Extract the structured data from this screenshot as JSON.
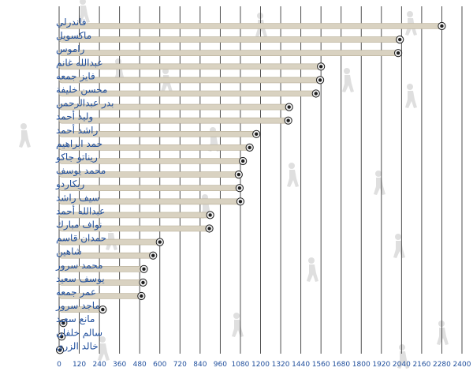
{
  "chart_data": {
    "type": "bar",
    "title": "",
    "xlabel": "",
    "ylabel": "",
    "xlim": [
      0,
      2400
    ],
    "grid": true,
    "x_ticks": [
      0,
      120,
      240,
      360,
      480,
      600,
      720,
      840,
      960,
      1080,
      1200,
      1320,
      1440,
      1560,
      1680,
      1800,
      1920,
      2040,
      2160,
      2280,
      2400
    ],
    "categories": [
      "فاندرلي",
      "ماكسويل",
      "راموس",
      "عبدالله غانم",
      "فايز جمعه",
      "محسن خليفة",
      "بدر عبدالرحمن",
      "وليد أحمد",
      "راشد أحمد",
      "حمد ابراهيم",
      "ريناتو جاكو",
      "محمد يوسف",
      "ريكاردو",
      "سيف راشد",
      "عبدالله أحمد",
      "نواف مبارك",
      "حمدان قاسم",
      "شاهين",
      "محمد سرور",
      "يوسف سعيد",
      "عمر جمعه",
      "ماجد سرور",
      "مانع سعيد",
      "سالم خلفان",
      "خالد الزرى"
    ],
    "values": [
      2280,
      2030,
      2020,
      1560,
      1555,
      1530,
      1370,
      1365,
      1175,
      1135,
      1095,
      1070,
      1075,
      1080,
      900,
      895,
      600,
      560,
      505,
      500,
      490,
      260,
      25,
      15,
      5
    ],
    "colors": {
      "bar": "#d9d2c1",
      "bar_edge": "#b8ae98",
      "ball_dark": "#1e1e1e",
      "ball_light": "#f2f2f2",
      "grid": "#3a3a3a",
      "label": "#1f4e9c",
      "tick": "#1f4e9c",
      "silhouette": "#dcdcdc"
    }
  }
}
